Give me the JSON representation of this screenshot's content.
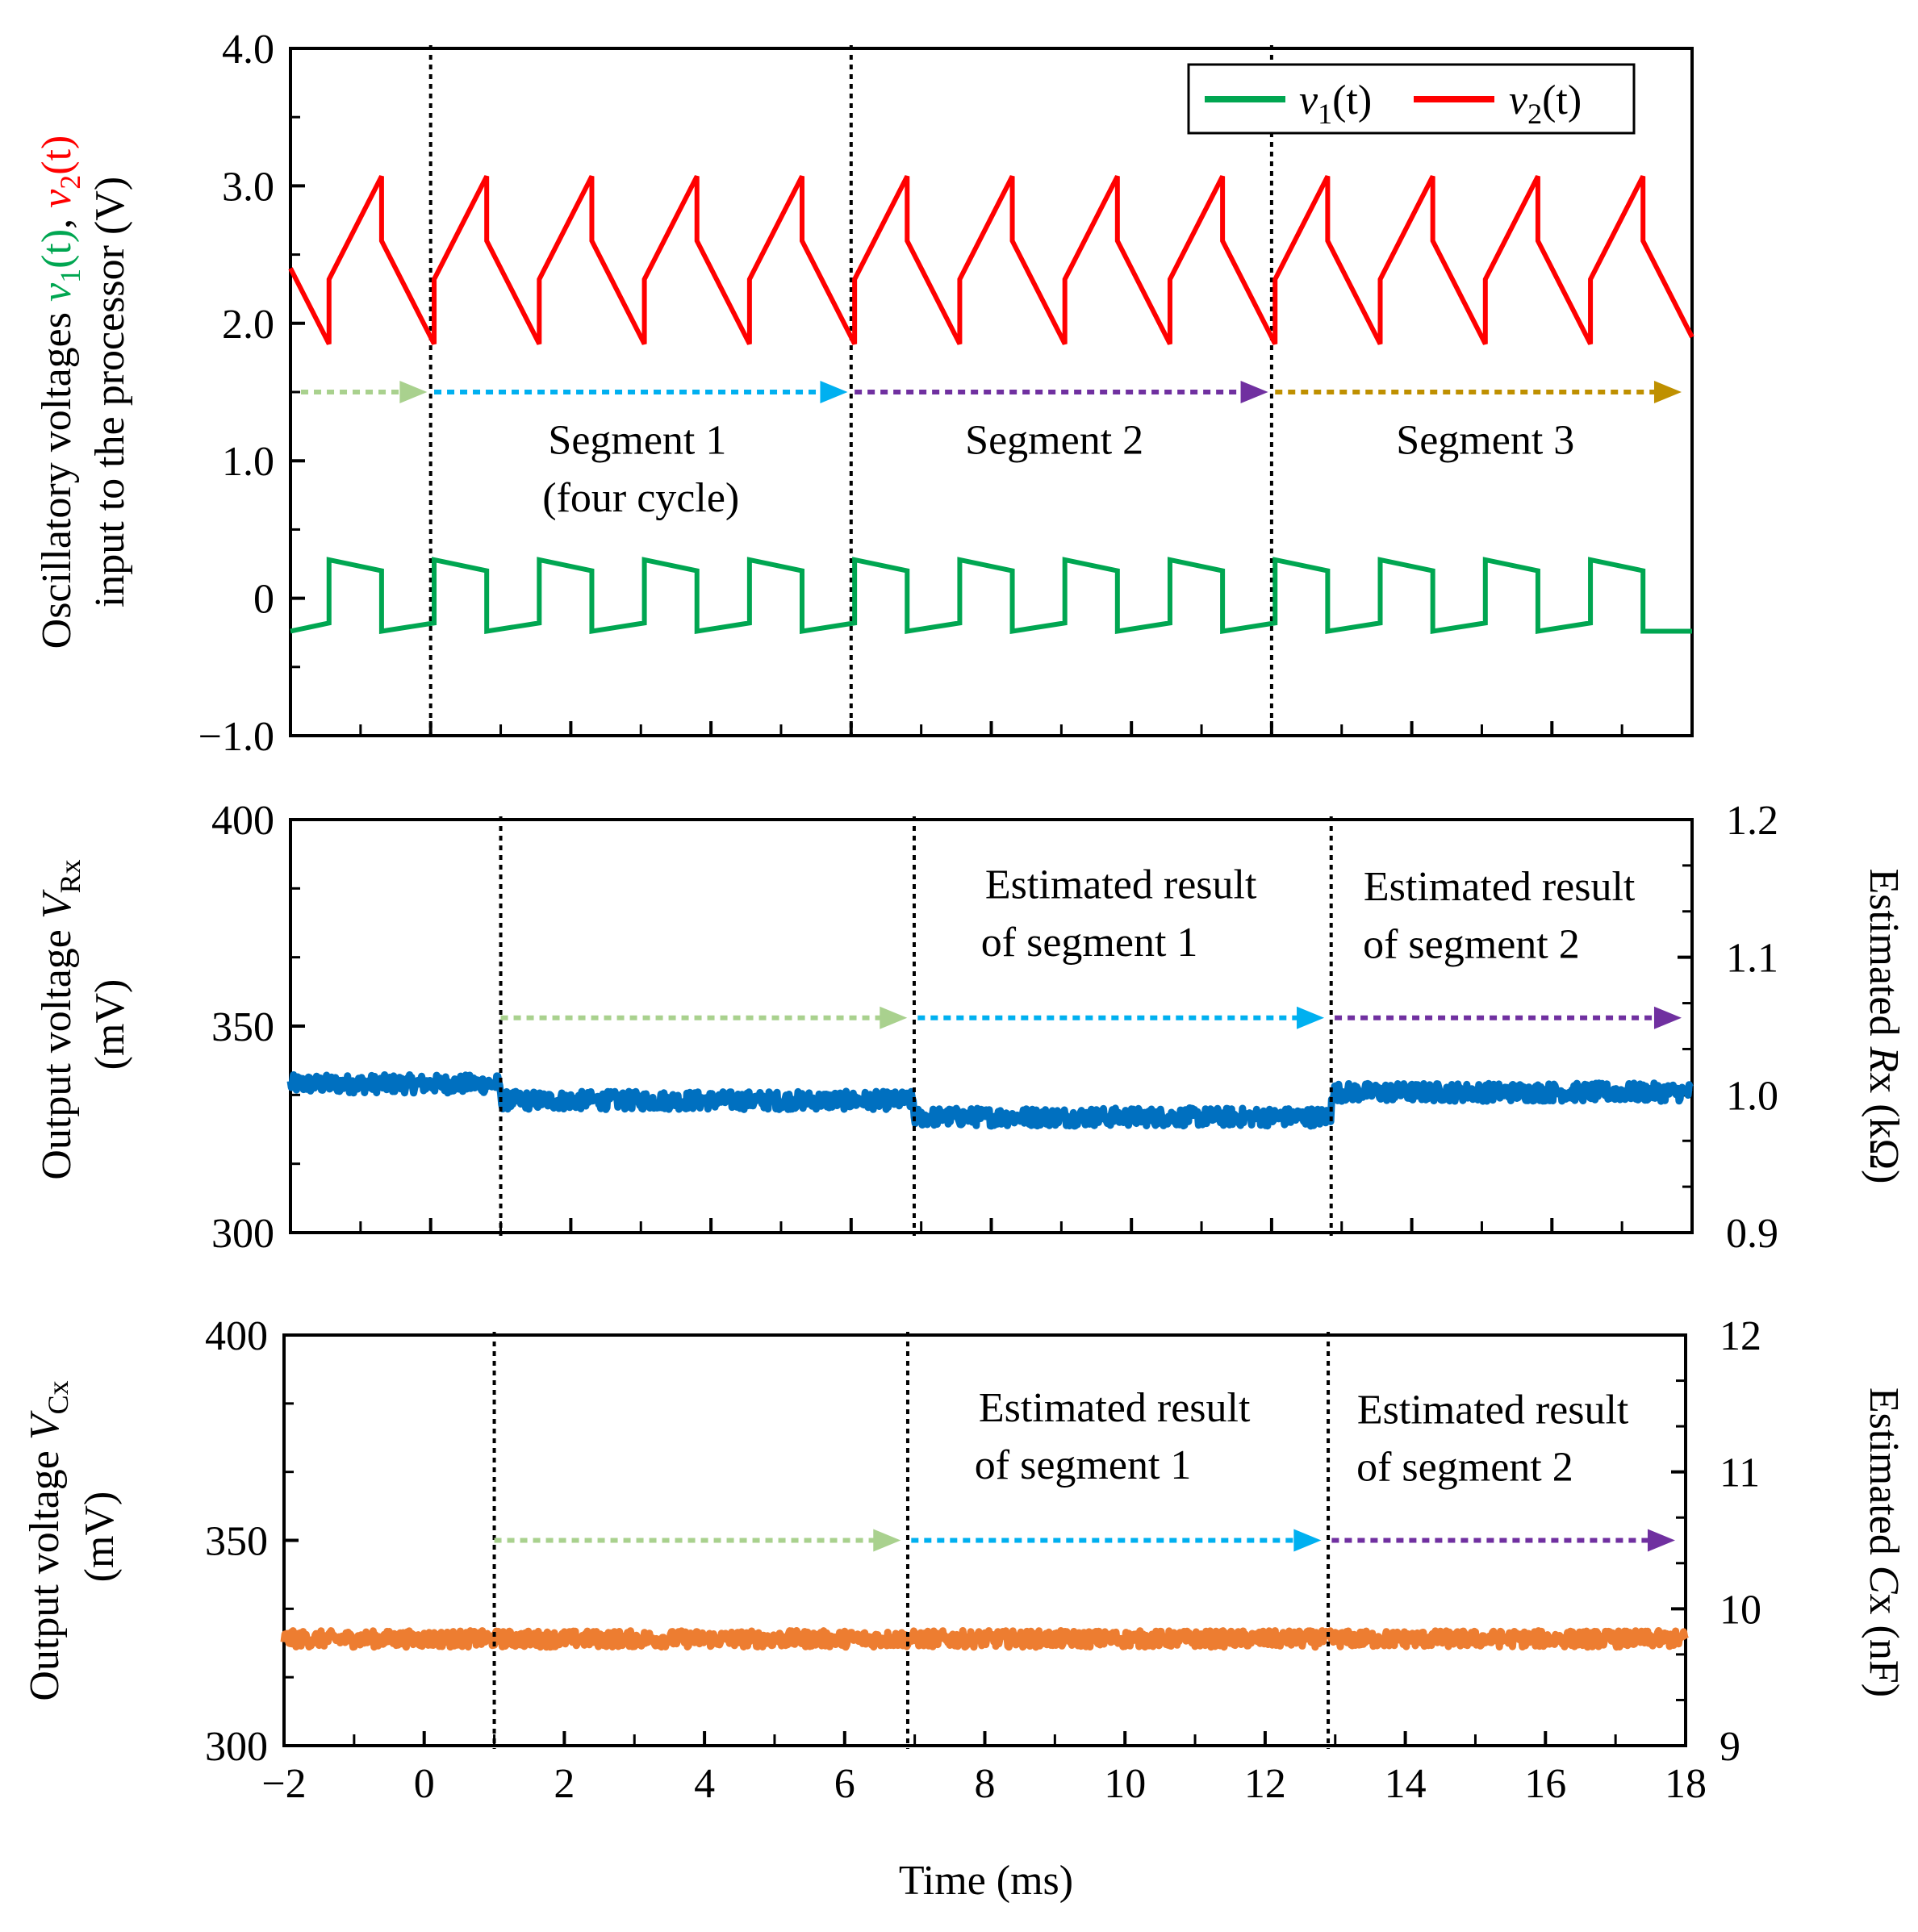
{
  "chart_data": [
    {
      "type": "line",
      "panel": "top",
      "ylabel_line1_prefix": "Oscillatory voltages ",
      "ylabel_line1_v1": "v",
      "ylabel_line1_v1_sub": "1",
      "ylabel_line1_v1_suffix": "(t)",
      "ylabel_line1_sep": ", ",
      "ylabel_line1_v2": "v",
      "ylabel_line1_v2_sub": "2",
      "ylabel_line1_v2_suffix": "(t)",
      "ylabel_line2": "input to the processor (V)",
      "xlim": [
        -2,
        18
      ],
      "ylim": [
        -1,
        4
      ],
      "yticks": [
        "4.0",
        "3.0",
        "2.0",
        "1.0",
        "0",
        "−1.0"
      ],
      "ytick_values": [
        4,
        3,
        2,
        1,
        0,
        -1
      ],
      "period_ms": 1.5,
      "series": [
        {
          "name": "v1(t)",
          "color": "#00a651",
          "low_start": -0.24,
          "low_end": -0.18,
          "high_start": 0.28,
          "high_end": 0.2
        },
        {
          "name": "v2(t)",
          "color": "#ff0000",
          "min": 1.85,
          "max": 3.07,
          "step_after_peak": 2.6,
          "step_after_trough": 2.32
        }
      ],
      "legend": {
        "v1": "v",
        "v1_sub": "1",
        "v1_suffix": "(t)",
        "v2": "v",
        "v2_sub": "2",
        "v2_suffix": "(t)",
        "placement": "top-right"
      },
      "dividers_ms": [
        0,
        6,
        12
      ],
      "arrows": [
        {
          "from": -1.85,
          "to": -0.05,
          "y": 1.5,
          "color": "#a9d18e"
        },
        {
          "from": 0.05,
          "to": 5.95,
          "y": 1.5,
          "color": "#00b0f0"
        },
        {
          "from": 6.05,
          "to": 11.95,
          "y": 1.5,
          "color": "#7030a0"
        },
        {
          "from": 12.05,
          "to": 17.85,
          "y": 1.5,
          "color": "#bf9000"
        }
      ],
      "labels": [
        {
          "text": "Segment 1",
          "x": 2.95,
          "y": 1.05,
          "color": "#00b0f0"
        },
        {
          "text": "(four cycle)",
          "x": 3.0,
          "y": 0.63,
          "color": "#00b0f0"
        },
        {
          "text": "Segment 2",
          "x": 8.9,
          "y": 1.05,
          "color": "#7030a0"
        },
        {
          "text": "Segment 3",
          "x": 15.05,
          "y": 1.05,
          "color": "#bf9000"
        }
      ]
    },
    {
      "type": "line",
      "panel": "middle",
      "ylabel_line1_prefix": "Output voltage ",
      "ylabel_line1_var": "V",
      "ylabel_line1_sub": "Rx",
      "ylabel_line2": "(mV)",
      "y2label_prefix": "Estimated ",
      "y2label_var": "R",
      "y2label_suffix": "x (kΩ)",
      "xlim": [
        -2,
        18
      ],
      "ylim": [
        300,
        400
      ],
      "y2lim": [
        0.9,
        1.2
      ],
      "yticks": [
        "400",
        "350",
        "300"
      ],
      "ytick_values": [
        400,
        350,
        300
      ],
      "y2ticks": [
        "1.2",
        "1.1",
        "1.0",
        "0.9"
      ],
      "y2tick_values": [
        1.2,
        1.1,
        1.0,
        0.9
      ],
      "color": "#0070c0",
      "levels": [
        {
          "from": -2,
          "to": 1.0,
          "value": 336
        },
        {
          "from": 1.0,
          "to": 6.9,
          "value": 332
        },
        {
          "from": 6.9,
          "to": 12.85,
          "value": 328
        },
        {
          "from": 12.85,
          "to": 18,
          "value": 334
        }
      ],
      "noise_mV": 2.2,
      "dividers_ms": [
        1.0,
        6.9,
        12.85
      ],
      "arrows": [
        {
          "from": 1.0,
          "to": 6.8,
          "y": 352,
          "color": "#a9d18e"
        },
        {
          "from": 6.95,
          "to": 12.75,
          "y": 352,
          "color": "#00b0f0"
        },
        {
          "from": 12.9,
          "to": 17.85,
          "y": 352,
          "color": "#7030a0"
        }
      ],
      "labels": [
        {
          "text": "Estimated result",
          "x": 9.85,
          "y": 381,
          "color": "#00b0f0"
        },
        {
          "text": "of segment 1",
          "x": 9.4,
          "y": 367,
          "color": "#00b0f0"
        },
        {
          "text": "Estimated result",
          "x": 15.25,
          "y": 380.5,
          "color": "#7030a0"
        },
        {
          "text": "of segment 2",
          "x": 14.85,
          "y": 366.5,
          "color": "#7030a0"
        }
      ]
    },
    {
      "type": "line",
      "panel": "bottom",
      "ylabel_line1_prefix": "Output voltage ",
      "ylabel_line1_var": "V",
      "ylabel_line1_sub": "Cx",
      "ylabel_line2": "(mV)",
      "y2label_prefix": "Estimated ",
      "y2label_var": "C",
      "y2label_suffix": "x (nF)",
      "xlabel": "Time (ms)",
      "xlim": [
        -2,
        18
      ],
      "ylim": [
        300,
        400
      ],
      "y2lim": [
        9,
        12
      ],
      "xticks": [
        "−2",
        "0",
        "2",
        "4",
        "6",
        "8",
        "10",
        "12",
        "14",
        "16",
        "18"
      ],
      "xtick_values": [
        -2,
        0,
        2,
        4,
        6,
        8,
        10,
        12,
        14,
        16,
        18
      ],
      "yticks": [
        "400",
        "350",
        "300"
      ],
      "ytick_values": [
        400,
        350,
        300
      ],
      "y2ticks": [
        "12",
        "11",
        "10",
        "9"
      ],
      "y2tick_values": [
        12,
        11,
        10,
        9
      ],
      "color": "#ed7d31",
      "levels": [
        {
          "from": -2,
          "to": 18,
          "value": 326
        }
      ],
      "noise_mV": 2.0,
      "dividers_ms": [
        1.0,
        6.9,
        12.9
      ],
      "arrows": [
        {
          "from": 1.0,
          "to": 6.8,
          "y": 350,
          "color": "#a9d18e"
        },
        {
          "from": 6.95,
          "to": 12.8,
          "y": 350,
          "color": "#00b0f0"
        },
        {
          "from": 12.95,
          "to": 17.85,
          "y": 350,
          "color": "#7030a0"
        }
      ],
      "labels": [
        {
          "text": "Estimated result",
          "x": 9.85,
          "y": 379,
          "color": "#00b0f0"
        },
        {
          "text": "of segment 1",
          "x": 9.4,
          "y": 365,
          "color": "#00b0f0"
        },
        {
          "text": "Estimated result",
          "x": 15.25,
          "y": 378.5,
          "color": "#7030a0"
        },
        {
          "text": "of segment 2",
          "x": 14.85,
          "y": 364.5,
          "color": "#7030a0"
        }
      ]
    }
  ]
}
